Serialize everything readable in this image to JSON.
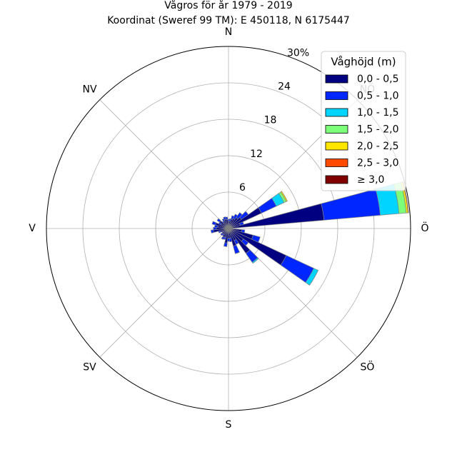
{
  "chart_data": {
    "type": "wind-rose",
    "title_line1": "Vågros för år 1979 - 2019",
    "title_line2": "Koordinat (Sweref 99 TM): E 450118, N 6175447",
    "directions": [
      {
        "label": "N",
        "angle": 0
      },
      {
        "label": "NV",
        "angle": 315
      },
      {
        "label": "V",
        "angle": 270
      },
      {
        "label": "SV",
        "angle": 225
      },
      {
        "label": "S",
        "angle": 180
      },
      {
        "label": "SÖ",
        "angle": 135
      },
      {
        "label": "Ö",
        "angle": 90
      },
      {
        "label": "NÖ",
        "angle": 45
      }
    ],
    "ring_ticks": [
      6,
      12,
      18,
      24,
      30
    ],
    "ring_labels": [
      "6",
      "12",
      "18",
      "24",
      "30%"
    ],
    "rmax": 30,
    "sector_width_deg": 10,
    "legend_title": "Våghöjd (m)",
    "bins": [
      {
        "label": "0,0 - 0,5",
        "color": "#000080"
      },
      {
        "label": "0,5 - 1,0",
        "color": "#0026ff"
      },
      {
        "label": "1,0 - 1,5",
        "color": "#00d4ff"
      },
      {
        "label": "1,5 - 2,0",
        "color": "#7dff7a"
      },
      {
        "label": "2,0 - 2,5",
        "color": "#ffe600"
      },
      {
        "label": "2,5 - 3,0",
        "color": "#ff4a00"
      },
      {
        "label": "≥ 3,0",
        "color": "#800000"
      }
    ],
    "sectors": [
      {
        "direction": 0,
        "values": [
          1.2,
          0.3,
          0,
          0,
          0,
          0,
          0
        ]
      },
      {
        "direction": 10,
        "values": [
          1.2,
          0.4,
          0,
          0,
          0,
          0,
          0
        ]
      },
      {
        "direction": 20,
        "values": [
          1.6,
          0.6,
          0,
          0,
          0,
          0,
          0
        ]
      },
      {
        "direction": 30,
        "values": [
          1.8,
          0.8,
          0,
          0,
          0,
          0,
          0
        ]
      },
      {
        "direction": 40,
        "values": [
          2.2,
          1.0,
          0,
          0,
          0,
          0,
          0
        ]
      },
      {
        "direction": 50,
        "values": [
          2.6,
          1.4,
          0,
          0,
          0,
          0,
          0
        ]
      },
      {
        "direction": 60,
        "values": [
          6.0,
          2.7,
          1.4,
          0.4,
          0.2,
          0,
          0
        ]
      },
      {
        "direction": 70,
        "values": [
          2.0,
          0.6,
          0,
          0,
          0,
          0,
          0
        ]
      },
      {
        "direction": 80,
        "values": [
          15.8,
          9.3,
          3.1,
          1.2,
          0.3,
          0.1,
          0
        ]
      },
      {
        "direction": 90,
        "values": [
          0,
          0,
          0,
          0,
          0,
          0,
          0
        ]
      },
      {
        "direction": 100,
        "values": [
          2.2,
          0.5,
          0,
          0,
          0,
          0,
          0
        ]
      },
      {
        "direction": 110,
        "values": [
          4.2,
          1.2,
          0,
          0,
          0,
          0,
          0
        ]
      },
      {
        "direction": 120,
        "values": [
          10.5,
          5.0,
          0.8,
          0,
          0,
          0,
          0
        ]
      },
      {
        "direction": 130,
        "values": [
          3.0,
          1.0,
          0,
          0,
          0,
          0,
          0
        ]
      },
      {
        "direction": 140,
        "values": [
          5.0,
          1.8,
          0.2,
          0,
          0,
          0,
          0
        ]
      },
      {
        "direction": 150,
        "values": [
          2.2,
          0.7,
          0,
          0,
          0,
          0,
          0
        ]
      },
      {
        "direction": 160,
        "values": [
          3.0,
          1.3,
          0,
          0,
          0,
          0,
          0
        ]
      },
      {
        "direction": 170,
        "values": [
          1.6,
          0.6,
          0,
          0,
          0,
          0,
          0
        ]
      },
      {
        "direction": 180,
        "values": [
          1.6,
          0.5,
          0,
          0,
          0,
          0,
          0
        ]
      },
      {
        "direction": 190,
        "values": [
          2.4,
          0.6,
          0,
          0,
          0,
          0,
          0
        ]
      },
      {
        "direction": 200,
        "values": [
          1.5,
          0.4,
          0,
          0,
          0,
          0,
          0
        ]
      },
      {
        "direction": 210,
        "values": [
          1.6,
          0.4,
          0,
          0,
          0,
          0,
          0
        ]
      },
      {
        "direction": 220,
        "values": [
          1.2,
          0.3,
          0,
          0,
          0,
          0,
          0
        ]
      },
      {
        "direction": 230,
        "values": [
          1.3,
          0.3,
          0,
          0,
          0,
          0,
          0
        ]
      },
      {
        "direction": 240,
        "values": [
          1.0,
          0.2,
          0,
          0,
          0,
          0,
          0
        ]
      },
      {
        "direction": 250,
        "values": [
          1.4,
          0.3,
          0,
          0,
          0,
          0,
          0
        ]
      },
      {
        "direction": 260,
        "values": [
          2.5,
          0.4,
          0,
          0,
          0,
          0,
          0
        ]
      },
      {
        "direction": 270,
        "values": [
          2.0,
          0.5,
          0,
          0,
          0,
          0,
          0
        ]
      },
      {
        "direction": 280,
        "values": [
          1.8,
          0.5,
          0,
          0,
          0,
          0,
          0
        ]
      },
      {
        "direction": 290,
        "values": [
          2.2,
          0.6,
          0,
          0,
          0,
          0,
          0
        ]
      },
      {
        "direction": 300,
        "values": [
          1.4,
          0.4,
          0,
          0,
          0,
          0,
          0
        ]
      },
      {
        "direction": 310,
        "values": [
          1.8,
          0.5,
          0,
          0,
          0,
          0,
          0
        ]
      },
      {
        "direction": 320,
        "values": [
          1.2,
          0.3,
          0,
          0,
          0,
          0,
          0
        ]
      },
      {
        "direction": 330,
        "values": [
          1.4,
          0.4,
          0,
          0,
          0,
          0,
          0
        ]
      },
      {
        "direction": 340,
        "values": [
          1.6,
          0.4,
          0,
          0,
          0,
          0,
          0
        ]
      },
      {
        "direction": 350,
        "values": [
          1.5,
          0.4,
          0,
          0,
          0,
          0,
          0
        ]
      }
    ],
    "grid": true,
    "legend_position": "top-right"
  }
}
